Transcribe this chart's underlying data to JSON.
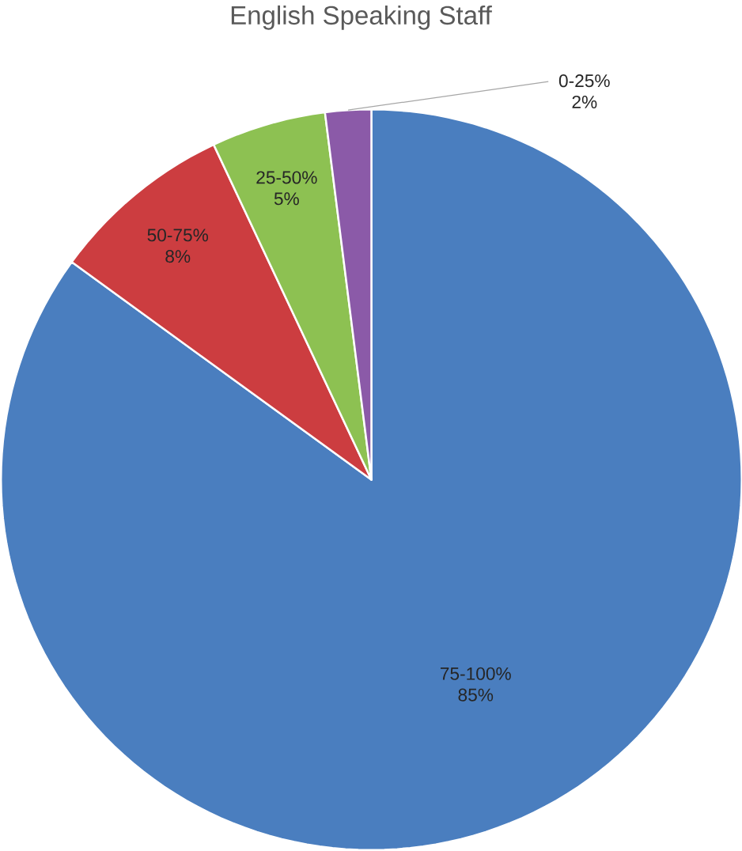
{
  "chart_data": {
    "type": "pie",
    "title": "English Speaking Staff",
    "categories": [
      "75-100%",
      "50-75%",
      "25-50%",
      "0-25%"
    ],
    "values": [
      85,
      8,
      5,
      2
    ],
    "value_labels": [
      "85%",
      "8%",
      "5%",
      "2%"
    ],
    "colors": [
      "#4a7ebf",
      "#cc3d40",
      "#8dc152",
      "#8b5aa8"
    ]
  }
}
